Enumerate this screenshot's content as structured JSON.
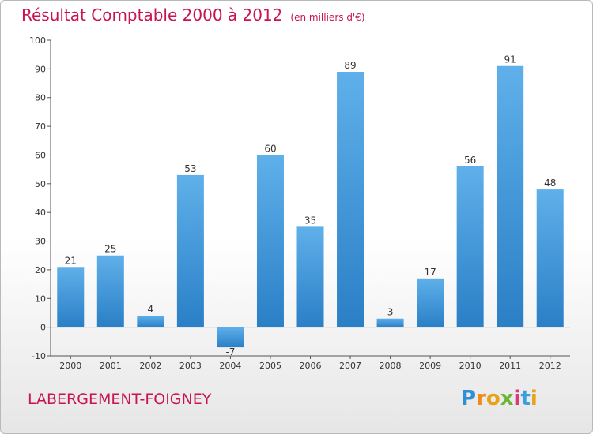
{
  "header": {
    "title": "Résultat Comptable 2000 à 2012",
    "subtitle": "(en milliers d'€)"
  },
  "footer": {
    "commune": "LABERGEMENT-FOIGNEY",
    "logo_letters": [
      "P",
      "r",
      "o",
      "x",
      "i",
      "t",
      "i"
    ],
    "logo_colors": [
      "#2e8ed6",
      "#f08a1c",
      "#e8a21a",
      "#6bb537",
      "#d63b7a",
      "#3aa0dd",
      "#e8a21a"
    ]
  },
  "chart_data": {
    "type": "bar",
    "title": "Résultat Comptable 2000 à 2012",
    "subtitle": "(en milliers d'€)",
    "xlabel": "",
    "ylabel": "",
    "categories": [
      "2000",
      "2001",
      "2002",
      "2003",
      "2004",
      "2005",
      "2006",
      "2007",
      "2008",
      "2009",
      "2010",
      "2011",
      "2012"
    ],
    "values": [
      21,
      25,
      4,
      53,
      -7,
      60,
      35,
      89,
      3,
      17,
      56,
      91,
      48
    ],
    "data_labels": [
      "21",
      "25",
      "4",
      "53",
      "-7",
      "60",
      "35",
      "89",
      "3",
      "17",
      "56",
      "91",
      "48"
    ],
    "ylim": [
      -10,
      100
    ],
    "yticks": [
      -10,
      0,
      10,
      20,
      30,
      40,
      50,
      60,
      70,
      80,
      90,
      100
    ],
    "grid": false,
    "bar_color": "#3d97dc"
  }
}
